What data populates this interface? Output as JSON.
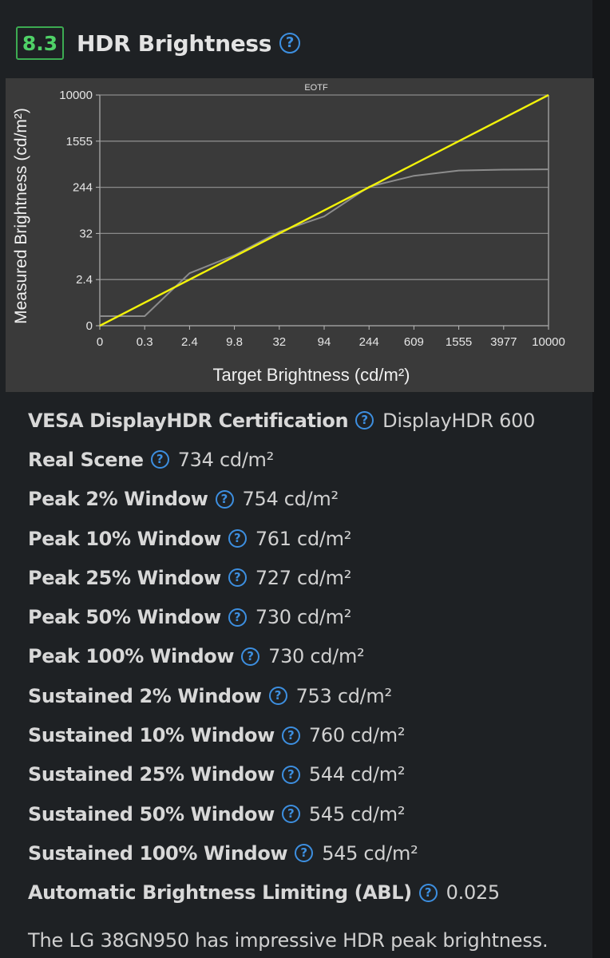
{
  "header": {
    "score": "8.3",
    "title": "HDR Brightness",
    "help_glyph": "?"
  },
  "chart_data": {
    "type": "line",
    "title": "EOTF",
    "xlabel": "Target Brightness (cd/m²)",
    "ylabel": "Measured Brightness (cd/m²)",
    "x_ticks": [
      "0",
      "0.3",
      "2.4",
      "9.8",
      "32",
      "94",
      "244",
      "609",
      "1555",
      "3977",
      "10000"
    ],
    "y_ticks": [
      "0",
      "2.4",
      "32",
      "244",
      "1555",
      "10000"
    ],
    "grid": true,
    "colors": {
      "target": "#f2f20a",
      "measured": "#8c8c8c",
      "grid": "#8a8a8a",
      "plot_bg": "#3a3a3a"
    },
    "series": [
      {
        "key": "target",
        "x": [
          0,
          10000
        ],
        "y": [
          0,
          10000
        ]
      },
      {
        "key": "measured",
        "x": [
          0,
          0.3,
          2.4,
          9.8,
          32,
          94,
          244,
          609,
          1555,
          3977,
          10000
        ],
        "y": [
          0.5,
          0.5,
          6.5,
          18,
          40,
          110,
          260,
          570,
          720,
          745,
          754
        ]
      }
    ]
  },
  "rows": [
    {
      "label": "VESA DisplayHDR Certification",
      "value": "DisplayHDR 600",
      "unit": ""
    },
    {
      "label": "Real Scene",
      "value": "734 cd/m²",
      "unit": ""
    },
    {
      "label": "Peak 2% Window",
      "value": "754 cd/m²",
      "unit": ""
    },
    {
      "label": "Peak 10% Window",
      "value": "761 cd/m²",
      "unit": ""
    },
    {
      "label": "Peak 25% Window",
      "value": "727 cd/m²",
      "unit": ""
    },
    {
      "label": "Peak 50% Window",
      "value": "730 cd/m²",
      "unit": ""
    },
    {
      "label": "Peak 100% Window",
      "value": "730 cd/m²",
      "unit": ""
    },
    {
      "label": "Sustained 2% Window",
      "value": "753 cd/m²",
      "unit": ""
    },
    {
      "label": "Sustained 10% Window",
      "value": "760 cd/m²",
      "unit": ""
    },
    {
      "label": "Sustained 25% Window",
      "value": "544 cd/m²",
      "unit": ""
    },
    {
      "label": "Sustained 50% Window",
      "value": "545 cd/m²",
      "unit": ""
    },
    {
      "label": "Sustained 100% Window",
      "value": "545 cd/m²",
      "unit": ""
    },
    {
      "label": "Automatic Brightness Limiting (ABL)",
      "value": "0.025",
      "unit": ""
    }
  ],
  "description": "The LG 38GN950 has impressive HDR peak brightness."
}
